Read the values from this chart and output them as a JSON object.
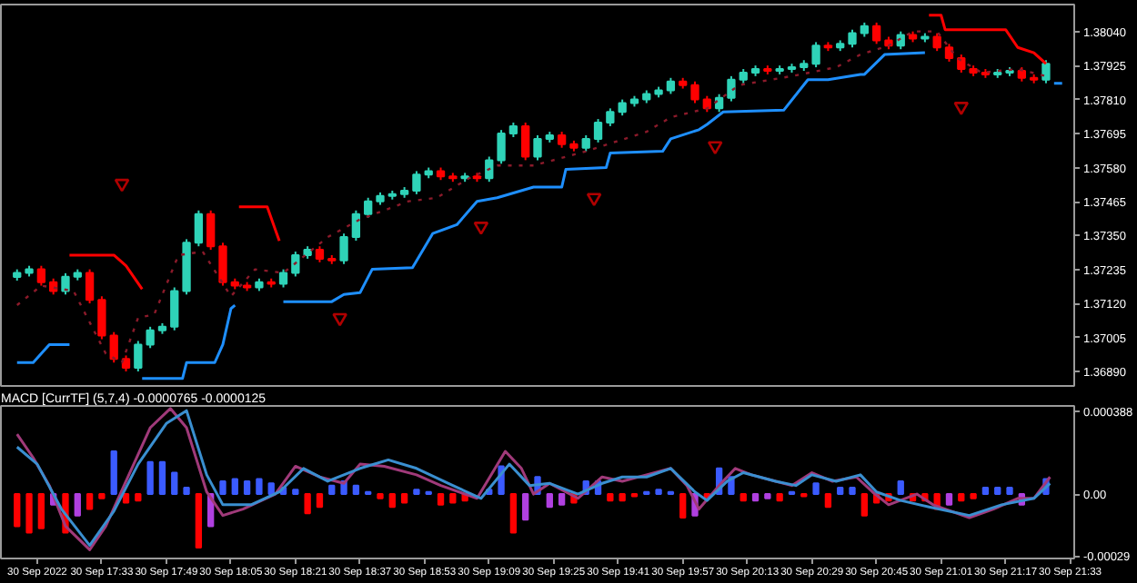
{
  "chart_data": [
    {
      "type": "candlestick",
      "tick_labels": "y",
      "xlim": [
        "2022-09-30T17:08",
        "2022-09-30T21:34"
      ],
      "ylim": [
        1.36842,
        1.38131
      ],
      "yticks": [
        {
          "value": 1.3804,
          "label": "1.38040"
        },
        {
          "value": 1.37925,
          "label": "1.37925"
        },
        {
          "value": 1.3781,
          "label": "1.37810"
        },
        {
          "value": 1.37695,
          "label": "1.37695"
        },
        {
          "value": 1.3758,
          "label": "1.37580"
        },
        {
          "value": 1.37465,
          "label": "1.37465"
        },
        {
          "value": 1.3735,
          "label": "1.37350"
        },
        {
          "value": 1.37235,
          "label": "1.37235"
        },
        {
          "value": 1.3712,
          "label": "1.37120"
        },
        {
          "value": 1.37005,
          "label": "1.37005"
        },
        {
          "value": 1.3689,
          "label": "1.36890"
        }
      ],
      "x": [
        "2022-09-30T17:12",
        "2022-09-30T17:15",
        "2022-09-30T17:18",
        "2022-09-30T17:21",
        "2022-09-30T17:24",
        "2022-09-30T17:27",
        "2022-09-30T17:30",
        "2022-09-30T17:33",
        "2022-09-30T17:36",
        "2022-09-30T17:39",
        "2022-09-30T17:42",
        "2022-09-30T17:45",
        "2022-09-30T17:48",
        "2022-09-30T17:51",
        "2022-09-30T17:54",
        "2022-09-30T17:57",
        "2022-09-30T18:00",
        "2022-09-30T18:03",
        "2022-09-30T18:06",
        "2022-09-30T18:09",
        "2022-09-30T18:12",
        "2022-09-30T18:15",
        "2022-09-30T18:18",
        "2022-09-30T18:21",
        "2022-09-30T18:24",
        "2022-09-30T18:27",
        "2022-09-30T18:30",
        "2022-09-30T18:33",
        "2022-09-30T18:36",
        "2022-09-30T18:39",
        "2022-09-30T18:42",
        "2022-09-30T18:45",
        "2022-09-30T18:48",
        "2022-09-30T18:51",
        "2022-09-30T18:54",
        "2022-09-30T18:57",
        "2022-09-30T19:00",
        "2022-09-30T19:03",
        "2022-09-30T19:06",
        "2022-09-30T19:09",
        "2022-09-30T19:12",
        "2022-09-30T19:15",
        "2022-09-30T19:18",
        "2022-09-30T19:21",
        "2022-09-30T19:24",
        "2022-09-30T19:27",
        "2022-09-30T19:30",
        "2022-09-30T19:33",
        "2022-09-30T19:36",
        "2022-09-30T19:39",
        "2022-09-30T19:42",
        "2022-09-30T19:45",
        "2022-09-30T19:48",
        "2022-09-30T19:51",
        "2022-09-30T19:54",
        "2022-09-30T19:57",
        "2022-09-30T20:00",
        "2022-09-30T20:03",
        "2022-09-30T20:06",
        "2022-09-30T20:09",
        "2022-09-30T20:12",
        "2022-09-30T20:15",
        "2022-09-30T20:18",
        "2022-09-30T20:21",
        "2022-09-30T20:24",
        "2022-09-30T20:27",
        "2022-09-30T20:30",
        "2022-09-30T20:33",
        "2022-09-30T20:36",
        "2022-09-30T20:39",
        "2022-09-30T20:42",
        "2022-09-30T20:45",
        "2022-09-30T20:48",
        "2022-09-30T20:51",
        "2022-09-30T20:54",
        "2022-09-30T20:57",
        "2022-09-30T21:00",
        "2022-09-30T21:03",
        "2022-09-30T21:06",
        "2022-09-30T21:09",
        "2022-09-30T21:12",
        "2022-09-30T21:15",
        "2022-09-30T21:18",
        "2022-09-30T21:21",
        "2022-09-30T21:24",
        "2022-09-30T21:27"
      ],
      "ohlc": [
        [
          1.3721,
          1.37236,
          1.37198,
          1.37224
        ],
        [
          1.37224,
          1.37248,
          1.37212,
          1.37236
        ],
        [
          1.37236,
          1.37248,
          1.37181,
          1.37193
        ],
        [
          1.37193,
          1.37205,
          1.37151,
          1.37163
        ],
        [
          1.37163,
          1.37223,
          1.37151,
          1.37211
        ],
        [
          1.37211,
          1.37236,
          1.37199,
          1.37224
        ],
        [
          1.37224,
          1.37236,
          1.37121,
          1.37133
        ],
        [
          1.37133,
          1.37145,
          1.37,
          1.37012
        ],
        [
          1.37012,
          1.37024,
          1.36921,
          1.36933
        ],
        [
          1.36933,
          1.36945,
          1.36891,
          1.36903
        ],
        [
          1.36903,
          1.36994,
          1.36891,
          1.36982
        ],
        [
          1.36982,
          1.37042,
          1.3697,
          1.3703
        ],
        [
          1.3703,
          1.37054,
          1.37018,
          1.37042
        ],
        [
          1.37042,
          1.37175,
          1.3703,
          1.37163
        ],
        [
          1.37163,
          1.37338,
          1.37151,
          1.37326
        ],
        [
          1.37326,
          1.37435,
          1.37314,
          1.37423
        ],
        [
          1.37423,
          1.37435,
          1.37302,
          1.37314
        ],
        [
          1.37314,
          1.37326,
          1.37181,
          1.37193
        ],
        [
          1.37193,
          1.37205,
          1.37169,
          1.37181
        ],
        [
          1.37181,
          1.37193,
          1.37163,
          1.37175
        ],
        [
          1.37175,
          1.37205,
          1.37163,
          1.37193
        ],
        [
          1.37193,
          1.37205,
          1.37175,
          1.37187
        ],
        [
          1.37187,
          1.37236,
          1.37175,
          1.37224
        ],
        [
          1.37224,
          1.37296,
          1.37212,
          1.37284
        ],
        [
          1.37284,
          1.37314,
          1.37272,
          1.37302
        ],
        [
          1.37302,
          1.37314,
          1.3726,
          1.37272
        ],
        [
          1.37272,
          1.37284,
          1.37254,
          1.37266
        ],
        [
          1.37266,
          1.37357,
          1.37254,
          1.37345
        ],
        [
          1.37345,
          1.37435,
          1.37333,
          1.37423
        ],
        [
          1.37423,
          1.37478,
          1.37411,
          1.37466
        ],
        [
          1.37466,
          1.37496,
          1.37454,
          1.37484
        ],
        [
          1.37484,
          1.37502,
          1.37472,
          1.3749
        ],
        [
          1.3749,
          1.37514,
          1.37478,
          1.37502
        ],
        [
          1.37502,
          1.37568,
          1.3749,
          1.37556
        ],
        [
          1.37556,
          1.3758,
          1.37544,
          1.37568
        ],
        [
          1.37568,
          1.3758,
          1.37538,
          1.3755
        ],
        [
          1.3755,
          1.37562,
          1.37532,
          1.37544
        ],
        [
          1.37544,
          1.37562,
          1.37532,
          1.3755
        ],
        [
          1.3755,
          1.37562,
          1.37532,
          1.37544
        ],
        [
          1.37544,
          1.37617,
          1.37532,
          1.37605
        ],
        [
          1.37605,
          1.37707,
          1.37593,
          1.37695
        ],
        [
          1.37695,
          1.37732,
          1.37683,
          1.3772
        ],
        [
          1.3772,
          1.37732,
          1.37605,
          1.37617
        ],
        [
          1.37617,
          1.37689,
          1.37605,
          1.37677
        ],
        [
          1.37677,
          1.37701,
          1.37665,
          1.37689
        ],
        [
          1.37689,
          1.37701,
          1.37647,
          1.37659
        ],
        [
          1.37659,
          1.37671,
          1.37635,
          1.37647
        ],
        [
          1.37647,
          1.37689,
          1.37635,
          1.37677
        ],
        [
          1.37677,
          1.37744,
          1.37665,
          1.37732
        ],
        [
          1.37732,
          1.3778,
          1.3772,
          1.37768
        ],
        [
          1.37768,
          1.3781,
          1.37756,
          1.37798
        ],
        [
          1.37798,
          1.37822,
          1.37786,
          1.3781
        ],
        [
          1.3781,
          1.37841,
          1.37798,
          1.37829
        ],
        [
          1.37829,
          1.37853,
          1.37817,
          1.37841
        ],
        [
          1.37841,
          1.37883,
          1.37829,
          1.37871
        ],
        [
          1.37871,
          1.37883,
          1.37847,
          1.37859
        ],
        [
          1.37859,
          1.37871,
          1.37798,
          1.3781
        ],
        [
          1.3781,
          1.37822,
          1.37768,
          1.3778
        ],
        [
          1.3778,
          1.37828,
          1.37768,
          1.37816
        ],
        [
          1.37816,
          1.37889,
          1.37804,
          1.37877
        ],
        [
          1.37877,
          1.37913,
          1.37865,
          1.37901
        ],
        [
          1.37901,
          1.37925,
          1.37889,
          1.37913
        ],
        [
          1.37913,
          1.37925,
          1.37895,
          1.37907
        ],
        [
          1.37907,
          1.37925,
          1.37895,
          1.37913
        ],
        [
          1.37913,
          1.37931,
          1.37901,
          1.37919
        ],
        [
          1.37919,
          1.37943,
          1.37907,
          1.37931
        ],
        [
          1.37931,
          1.38004,
          1.37919,
          1.37992
        ],
        [
          1.37992,
          1.38004,
          1.37974,
          1.37986
        ],
        [
          1.37986,
          1.3801,
          1.37974,
          1.37998
        ],
        [
          1.37998,
          1.38046,
          1.37986,
          1.38034
        ],
        [
          1.38034,
          1.3807,
          1.38022,
          1.38058
        ],
        [
          1.38058,
          1.3807,
          1.37998,
          1.3801
        ],
        [
          1.3801,
          1.38022,
          1.3798,
          1.37992
        ],
        [
          1.37992,
          1.3804,
          1.3798,
          1.38028
        ],
        [
          1.38028,
          1.3804,
          1.38004,
          1.38016
        ],
        [
          1.38016,
          1.38034,
          1.38004,
          1.38022
        ],
        [
          1.38022,
          1.38034,
          1.37974,
          1.37986
        ],
        [
          1.37986,
          1.37998,
          1.37938,
          1.3795
        ],
        [
          1.3795,
          1.37962,
          1.37901,
          1.37913
        ],
        [
          1.37913,
          1.37925,
          1.37889,
          1.37901
        ],
        [
          1.37901,
          1.37913,
          1.37883,
          1.37895
        ],
        [
          1.37895,
          1.37913,
          1.37883,
          1.37901
        ],
        [
          1.37901,
          1.37919,
          1.37889,
          1.37907
        ],
        [
          1.37907,
          1.37919,
          1.37871,
          1.37883
        ],
        [
          1.37883,
          1.37895,
          1.37865,
          1.37877
        ],
        [
          1.37877,
          1.37943,
          1.37865,
          1.37931
        ]
      ],
      "colors": [
        "#2fd3b8",
        "#2fd3b8",
        "#ff0000",
        "#ff0000",
        "#2fd3b8",
        "#2fd3b8",
        "#ff0000",
        "#ff0000",
        "#ff0000",
        "#ff0000",
        "#2fd3b8",
        "#2fd3b8",
        "#2fd3b8",
        "#2fd3b8",
        "#2fd3b8",
        "#2fd3b8",
        "#ff0000",
        "#ff0000",
        "#ff0000",
        "#ff0000",
        "#2fd3b8",
        "#ff0000",
        "#2fd3b8",
        "#2fd3b8",
        "#2fd3b8",
        "#ff0000",
        "#ff0000",
        "#2fd3b8",
        "#2fd3b8",
        "#2fd3b8",
        "#2fd3b8",
        "#2fd3b8",
        "#2fd3b8",
        "#2fd3b8",
        "#2fd3b8",
        "#ff0000",
        "#ff0000",
        "#2fd3b8",
        "#ff0000",
        "#2fd3b8",
        "#2fd3b8",
        "#2fd3b8",
        "#ff0000",
        "#2fd3b8",
        "#2fd3b8",
        "#ff0000",
        "#ff0000",
        "#2fd3b8",
        "#2fd3b8",
        "#2fd3b8",
        "#2fd3b8",
        "#2fd3b8",
        "#2fd3b8",
        "#2fd3b8",
        "#2fd3b8",
        "#ff0000",
        "#ff0000",
        "#ff0000",
        "#2fd3b8",
        "#2fd3b8",
        "#2fd3b8",
        "#2fd3b8",
        "#ff0000",
        "#2fd3b8",
        "#2fd3b8",
        "#2fd3b8",
        "#2fd3b8",
        "#ff0000",
        "#2fd3b8",
        "#2fd3b8",
        "#2fd3b8",
        "#ff0000",
        "#ff0000",
        "#2fd3b8",
        "#ff0000",
        "#2fd3b8",
        "#ff0000",
        "#ff0000",
        "#ff0000",
        "#ff0000",
        "#ff0000",
        "#2fd3b8",
        "#2fd3b8",
        "#ff0000",
        "#ff0000",
        "#2fd3b8"
      ],
      "series": [
        {
          "type": "line",
          "color": "#1e8fff",
          "x": [
            "2022-09-30T17:12",
            "2022-09-30T17:16",
            "2022-09-30T17:20",
            "2022-09-30T17:25",
            "2022-09-30T17:30",
            "2022-09-30T17:43",
            "2022-09-30T17:53",
            "2022-09-30T17:54",
            "2022-09-30T18:01",
            "2022-09-30T18:03",
            "2022-09-30T18:05",
            "2022-09-30T18:06",
            "2022-09-30T18:12",
            "2022-09-30T18:18",
            "2022-09-30T18:30",
            "2022-09-30T18:33",
            "2022-09-30T18:37",
            "2022-09-30T18:40",
            "2022-09-30T18:50",
            "2022-09-30T18:55",
            "2022-09-30T19:01",
            "2022-09-30T19:06",
            "2022-09-30T19:11",
            "2022-09-30T19:20",
            "2022-09-30T19:27",
            "2022-09-30T19:28",
            "2022-09-30T19:38",
            "2022-09-30T19:39",
            "2022-09-30T19:52",
            "2022-09-30T19:54",
            "2022-09-30T20:01",
            "2022-09-30T20:03",
            "2022-09-30T20:07",
            "2022-09-30T20:22",
            "2022-09-30T20:28",
            "2022-09-30T20:33",
            "2022-09-30T20:41",
            "2022-09-30T20:42",
            "2022-09-30T20:47",
            "2022-09-30T20:57",
            "2022-09-30T21:12",
            "2022-09-30T21:29",
            "2022-09-30T21:31"
          ],
          "values": [
            1.36921,
            1.36921,
            1.36982,
            1.36982,
            null,
            1.36867,
            1.36867,
            1.36921,
            1.36921,
            1.36982,
            1.37103,
            1.37115,
            null,
            1.37127,
            1.37127,
            1.37151,
            1.37157,
            1.37236,
            1.37242,
            1.37357,
            1.37387,
            1.37466,
            1.37478,
            1.37514,
            1.37514,
            1.37574,
            1.3758,
            1.37629,
            1.37635,
            1.37677,
            1.37708,
            1.37726,
            1.37768,
            1.37774,
            1.37877,
            1.37877,
            1.37895,
            1.37895,
            1.37962,
            1.37968,
            null,
            1.37865,
            1.37865
          ]
        },
        {
          "type": "line",
          "color": "#ff0000",
          "x": [
            "2022-09-30T17:25",
            "2022-09-30T17:36",
            "2022-09-30T17:39",
            "2022-09-30T17:43",
            "2022-09-30T17:54",
            "2022-09-30T18:07",
            "2022-09-30T18:14",
            "2022-09-30T18:17",
            "2022-09-30T20:30",
            "2022-09-30T20:58",
            "2022-09-30T21:01",
            "2022-09-30T21:02",
            "2022-09-30T21:17",
            "2022-09-30T21:20",
            "2022-09-30T21:24",
            "2022-09-30T21:27"
          ],
          "values": [
            1.37284,
            1.37284,
            1.37248,
            1.37169,
            null,
            1.37447,
            1.37447,
            1.37332,
            null,
            1.38095,
            1.38095,
            1.38046,
            1.38046,
            1.37986,
            1.37968,
            1.37931
          ]
        },
        {
          "type": "line",
          "color": "#8b1a2a",
          "line_style": "dotted",
          "x": [
            "2022-09-30T17:12",
            "2022-09-30T17:18",
            "2022-09-30T17:26",
            "2022-09-30T17:34",
            "2022-09-30T17:38",
            "2022-09-30T17:42",
            "2022-09-30T17:46",
            "2022-09-30T17:52",
            "2022-09-30T17:58",
            "2022-09-30T18:05",
            "2022-09-30T18:11",
            "2022-09-30T18:18",
            "2022-09-30T18:29",
            "2022-09-30T18:37",
            "2022-09-30T18:49",
            "2022-09-30T18:56",
            "2022-09-30T19:04",
            "2022-09-30T19:11",
            "2022-09-30T19:20",
            "2022-09-30T19:33",
            "2022-09-30T19:48",
            "2022-09-30T19:54",
            "2022-09-30T20:03",
            "2022-09-30T20:11",
            "2022-09-30T20:24",
            "2022-09-30T20:35",
            "2022-09-30T20:41",
            "2022-09-30T20:48",
            "2022-09-30T20:54",
            "2022-09-30T21:00",
            "2022-09-30T21:05",
            "2022-09-30T21:11",
            "2022-09-30T21:20",
            "2022-09-30T21:27"
          ],
          "values": [
            1.37115,
            1.37181,
            1.37163,
            1.36951,
            1.36921,
            1.37072,
            1.37084,
            1.37284,
            1.37296,
            1.37145,
            1.37236,
            1.37224,
            1.37345,
            1.37405,
            1.37466,
            1.37478,
            1.37544,
            1.37587,
            1.37587,
            1.37635,
            1.37701,
            1.3775,
            1.3778,
            1.37859,
            1.37889,
            1.37919,
            1.37962,
            1.37992,
            1.3804,
            1.3804,
            1.3795,
            1.37901,
            1.37913,
            1.37889
          ]
        },
        {
          "type": "scatter",
          "marker": "triangle",
          "color": "#b00000",
          "x": [
            "2022-09-30T17:38",
            "2022-09-30T18:32",
            "2022-09-30T19:07",
            "2022-09-30T19:35",
            "2022-09-30T20:05",
            "2022-09-30T21:06"
          ],
          "values": [
            1.37526,
            1.37072,
            1.37381,
            1.37478,
            1.37653,
            1.37786
          ]
        }
      ]
    },
    {
      "type": "bar",
      "title": "MACD [CurrTF] (5,7,4) -0.0000765 -0.0000125",
      "xlim": [
        "2022-09-30T17:08",
        "2022-09-30T21:34"
      ],
      "ylim": [
        -0.000301,
        0.000412
      ],
      "xticks": [
        {
          "value": "2022-09-30T17:17",
          "label": "30 Sep 2022"
        },
        {
          "value": "2022-09-30T17:33",
          "label": "30 Sep 17:33"
        },
        {
          "value": "2022-09-30T17:49",
          "label": "30 Sep 17:49"
        },
        {
          "value": "2022-09-30T18:05",
          "label": "30 Sep 18:05"
        },
        {
          "value": "2022-09-30T18:21",
          "label": "30 Sep 18:21"
        },
        {
          "value": "2022-09-30T18:37",
          "label": "30 Sep 18:37"
        },
        {
          "value": "2022-09-30T18:53",
          "label": "30 Sep 18:53"
        },
        {
          "value": "2022-09-30T19:09",
          "label": "30 Sep 19:09"
        },
        {
          "value": "2022-09-30T19:25",
          "label": "30 Sep 19:25"
        },
        {
          "value": "2022-09-30T19:41",
          "label": "30 Sep 19:41"
        },
        {
          "value": "2022-09-30T19:57",
          "label": "30 Sep 19:57"
        },
        {
          "value": "2022-09-30T20:13",
          "label": "30 Sep 20:13"
        },
        {
          "value": "2022-09-30T20:29",
          "label": "30 Sep 20:29"
        },
        {
          "value": "2022-09-30T20:45",
          "label": "30 Sep 20:45"
        },
        {
          "value": "2022-09-30T21:01",
          "label": "30 Sep 21:01"
        },
        {
          "value": "2022-09-30T21:17",
          "label": "30 Sep 21:17"
        },
        {
          "value": "2022-09-30T21:33",
          "label": "30 Sep 21:33"
        }
      ],
      "yticks": [
        {
          "value": 0.000388,
          "label": "0.000388"
        },
        {
          "value": 0,
          "label": "0.00"
        },
        {
          "value": -0.00029,
          "label": "-0.00029"
        }
      ],
      "x": [
        "2022-09-30T17:12",
        "2022-09-30T17:15",
        "2022-09-30T17:18",
        "2022-09-30T17:21",
        "2022-09-30T17:24",
        "2022-09-30T17:27",
        "2022-09-30T17:30",
        "2022-09-30T17:33",
        "2022-09-30T17:36",
        "2022-09-30T17:39",
        "2022-09-30T17:42",
        "2022-09-30T17:45",
        "2022-09-30T17:48",
        "2022-09-30T17:51",
        "2022-09-30T17:54",
        "2022-09-30T17:57",
        "2022-09-30T18:00",
        "2022-09-30T18:03",
        "2022-09-30T18:06",
        "2022-09-30T18:09",
        "2022-09-30T18:12",
        "2022-09-30T18:15",
        "2022-09-30T18:18",
        "2022-09-30T18:21",
        "2022-09-30T18:24",
        "2022-09-30T18:27",
        "2022-09-30T18:30",
        "2022-09-30T18:33",
        "2022-09-30T18:36",
        "2022-09-30T18:39",
        "2022-09-30T18:42",
        "2022-09-30T18:45",
        "2022-09-30T18:48",
        "2022-09-30T18:51",
        "2022-09-30T18:54",
        "2022-09-30T18:57",
        "2022-09-30T19:00",
        "2022-09-30T19:03",
        "2022-09-30T19:06",
        "2022-09-30T19:09",
        "2022-09-30T19:12",
        "2022-09-30T19:15",
        "2022-09-30T19:18",
        "2022-09-30T19:21",
        "2022-09-30T19:24",
        "2022-09-30T19:27",
        "2022-09-30T19:30",
        "2022-09-30T19:33",
        "2022-09-30T19:36",
        "2022-09-30T19:39",
        "2022-09-30T19:42",
        "2022-09-30T19:45",
        "2022-09-30T19:48",
        "2022-09-30T19:51",
        "2022-09-30T19:54",
        "2022-09-30T19:57",
        "2022-09-30T20:00",
        "2022-09-30T20:03",
        "2022-09-30T20:06",
        "2022-09-30T20:09",
        "2022-09-30T20:12",
        "2022-09-30T20:15",
        "2022-09-30T20:18",
        "2022-09-30T20:21",
        "2022-09-30T20:24",
        "2022-09-30T20:27",
        "2022-09-30T20:30",
        "2022-09-30T20:33",
        "2022-09-30T20:36",
        "2022-09-30T20:39",
        "2022-09-30T20:42",
        "2022-09-30T20:45",
        "2022-09-30T20:48",
        "2022-09-30T20:51",
        "2022-09-30T20:54",
        "2022-09-30T20:57",
        "2022-09-30T21:00",
        "2022-09-30T21:03",
        "2022-09-30T21:06",
        "2022-09-30T21:09",
        "2022-09-30T21:12",
        "2022-09-30T21:15",
        "2022-09-30T21:18",
        "2022-09-30T21:21",
        "2022-09-30T21:24",
        "2022-09-30T21:27"
      ],
      "values": [
        -0.00015,
        -0.00018,
        -0.00016,
        -5e-05,
        -0.00018,
        -0.0001,
        -7e-05,
        -2e-05,
        0.0002,
        -4e-05,
        -3e-05,
        0.00015,
        0.00015,
        0.0001,
        3e-05,
        -0.00025,
        -0.00015,
        6e-05,
        7e-05,
        6e-05,
        7e-05,
        5e-05,
        3e-05,
        2e-05,
        -9e-05,
        -6e-05,
        4e-05,
        6e-05,
        4e-05,
        1e-05,
        -2e-05,
        -6e-05,
        -4e-05,
        2e-05,
        1e-05,
        -5e-05,
        -4e-05,
        -3e-05,
        null,
        2e-05,
        0.00013,
        -0.00018,
        -0.00012,
        8e-05,
        -6e-05,
        -5e-05,
        -4e-05,
        6e-05,
        6e-05,
        -3e-05,
        -3e-05,
        -1e-05,
        1e-05,
        2e-05,
        1e-05,
        -0.00011,
        -0.0001,
        -2e-05,
        0.00012,
        8e-05,
        -3e-05,
        -3e-05,
        -2e-05,
        -3e-05,
        1e-05,
        -1e-05,
        5e-05,
        -6e-05,
        3e-05,
        3e-05,
        -0.0001,
        -4e-05,
        -3e-05,
        6e-05,
        -3e-05,
        -3e-05,
        -7e-05,
        -5e-05,
        -3e-05,
        -2e-05,
        3e-05,
        3e-05,
        3e-05,
        -5e-05,
        null,
        7e-05
      ],
      "colors": [
        "#ff0000",
        "#ff0000",
        "#ff0000",
        "#b040e0",
        "#ff0000",
        "#b040e0",
        "#ff0000",
        "#ff0000",
        "#3b5bff",
        "#ff0000",
        "#ff0000",
        "#3b5bff",
        "#3b5bff",
        "#3b5bff",
        "#3b5bff",
        "#ff0000",
        "#b040e0",
        "#3b5bff",
        "#3b5bff",
        "#3b5bff",
        "#3b5bff",
        "#3b5bff",
        "#3b5bff",
        "#3b5bff",
        "#ff0000",
        "#ff0000",
        "#3b5bff",
        "#3b5bff",
        "#3b5bff",
        "#3b5bff",
        "#ff0000",
        "#ff0000",
        "#ff0000",
        "#3b5bff",
        "#3b5bff",
        "#ff0000",
        "#ff0000",
        "#ff0000",
        "#ff0000",
        "#3b5bff",
        "#3b5bff",
        "#ff0000",
        "#b040e0",
        "#3b5bff",
        "#b040e0",
        "#b040e0",
        "#ff0000",
        "#3b5bff",
        "#3b5bff",
        "#ff0000",
        "#ff0000",
        "#ff0000",
        "#3b5bff",
        "#3b5bff",
        "#3b5bff",
        "#ff0000",
        "#b040e0",
        "#ff0000",
        "#3b5bff",
        "#3b5bff",
        "#ff0000",
        "#b040e0",
        "#b040e0",
        "#ff0000",
        "#3b5bff",
        "#ff0000",
        "#3b5bff",
        "#ff0000",
        "#3b5bff",
        "#3b5bff",
        "#ff0000",
        "#ff0000",
        "#ff0000",
        "#3b5bff",
        "#ff0000",
        "#ff0000",
        "#ff0000",
        "#b040e0",
        "#ff0000",
        "#ff0000",
        "#3b5bff",
        "#3b5bff",
        "#3b5bff",
        "#b040e0",
        "#ff0000",
        "#3b5bff"
      ],
      "series": [
        {
          "type": "line",
          "color": "#a03a7a",
          "x": [
            "2022-09-30T17:12",
            "2022-09-30T17:16",
            "2022-09-30T17:20",
            "2022-09-30T17:24",
            "2022-09-30T17:30",
            "2022-09-30T17:34",
            "2022-09-30T17:39",
            "2022-09-30T17:45",
            "2022-09-30T17:50",
            "2022-09-30T17:54",
            "2022-09-30T17:59",
            "2022-09-30T18:03",
            "2022-09-30T18:08",
            "2022-09-30T18:16",
            "2022-09-30T18:21",
            "2022-09-30T18:27",
            "2022-09-30T18:33",
            "2022-09-30T18:37",
            "2022-09-30T18:43",
            "2022-09-30T18:51",
            "2022-09-30T18:57",
            "2022-09-30T19:06",
            "2022-09-30T19:13",
            "2022-09-30T19:17",
            "2022-09-30T19:20",
            "2022-09-30T19:24",
            "2022-09-30T19:25",
            "2022-09-30T19:31",
            "2022-09-30T19:37",
            "2022-09-30T19:42",
            "2022-09-30T19:48",
            "2022-09-30T19:54",
            "2022-09-30T19:58",
            "2022-09-30T20:01",
            "2022-09-30T20:06",
            "2022-09-30T20:10",
            "2022-09-30T20:14",
            "2022-09-30T20:20",
            "2022-09-30T20:24",
            "2022-09-30T20:29",
            "2022-09-30T20:34",
            "2022-09-30T20:40",
            "2022-09-30T20:44",
            "2022-09-30T20:48",
            "2022-09-30T20:55",
            "2022-09-30T20:59",
            "2022-09-30T21:08",
            "2022-09-30T21:14",
            "2022-09-30T21:20",
            "2022-09-30T21:24",
            "2022-09-30T21:28"
          ],
          "values": [
            0.00028,
            0.00017,
            4e-05,
            -0.00015,
            -0.00026,
            -0.00015,
            6e-05,
            0.00031,
            0.0004,
            0.00031,
            1e-05,
            -0.0001,
            -7e-05,
            0,
            0.00013,
            8e-05,
            5e-05,
            0.00014,
            0.00013,
            9e-05,
            4e-05,
            -2e-05,
            0.0002,
            0.00012,
            0,
            5e-05,
            4e-05,
            -2e-05,
            8e-05,
            6e-05,
            9e-05,
            0.00012,
            4e-05,
            -7e-05,
            4e-05,
            0.00012,
            9e-05,
            6e-05,
            4e-05,
            0.0001,
            6e-05,
            8e-05,
            1e-05,
            -5e-05,
            0,
            -5e-05,
            -0.00011,
            -7e-05,
            -2e-05,
            -2e-05,
            8e-05
          ]
        },
        {
          "type": "line",
          "color": "#3a8fd0",
          "x": [
            "2022-09-30T17:12",
            "2022-09-30T17:17",
            "2022-09-30T17:23",
            "2022-09-30T17:30",
            "2022-09-30T17:36",
            "2022-09-30T17:42",
            "2022-09-30T17:49",
            "2022-09-30T17:54",
            "2022-09-30T17:59",
            "2022-09-30T18:03",
            "2022-09-30T18:10",
            "2022-09-30T18:17",
            "2022-09-30T18:23",
            "2022-09-30T18:29",
            "2022-09-30T18:37",
            "2022-09-30T18:44",
            "2022-09-30T18:51",
            "2022-09-30T19:00",
            "2022-09-30T19:07",
            "2022-09-30T19:14",
            "2022-09-30T19:19",
            "2022-09-30T19:24",
            "2022-09-30T19:31",
            "2022-09-30T19:37",
            "2022-09-30T19:42",
            "2022-09-30T19:48",
            "2022-09-30T19:54",
            "2022-09-30T20:00",
            "2022-09-30T20:03",
            "2022-09-30T20:08",
            "2022-09-30T20:12",
            "2022-09-30T20:20",
            "2022-09-30T20:25",
            "2022-09-30T20:29",
            "2022-09-30T20:35",
            "2022-09-30T20:41",
            "2022-09-30T20:45",
            "2022-09-30T20:51",
            "2022-09-30T20:58",
            "2022-09-30T21:08",
            "2022-09-30T21:16",
            "2022-09-30T21:24",
            "2022-09-30T21:28"
          ],
          "values": [
            0.00022,
            0.00014,
            -7e-05,
            -0.00024,
            -8e-05,
            0.00014,
            0.00033,
            0.00039,
            9e-05,
            -5e-05,
            -5e-05,
            1e-05,
            0.00012,
            6e-05,
            0.00012,
            0.00016,
            0.00012,
            4e-05,
            -2e-05,
            0.00014,
            4e-05,
            5e-05,
            0,
            5e-05,
            8e-05,
            8e-05,
            0.00012,
            1e-05,
            -3e-05,
            6e-05,
            0.0001,
            6e-05,
            4e-05,
            9e-05,
            6e-05,
            9e-05,
            1e-05,
            -3e-05,
            -6e-05,
            -0.0001,
            -5e-05,
            -2e-05,
            5e-05
          ]
        }
      ]
    }
  ]
}
